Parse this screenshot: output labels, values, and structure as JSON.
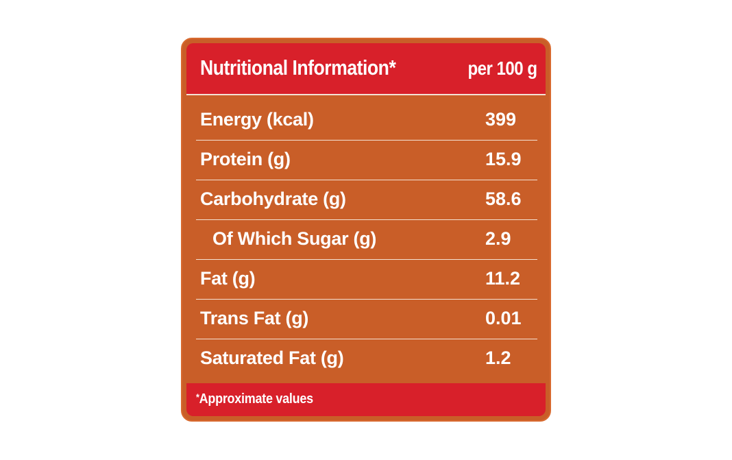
{
  "header": {
    "title": "Nutritional Information*",
    "unit": "per 100 g"
  },
  "rows": [
    {
      "label": "Energy (kcal)",
      "value": "399"
    },
    {
      "label": "Protein (g)",
      "value": "15.9"
    },
    {
      "label": "Carbohydrate (g)",
      "value": "58.6"
    },
    {
      "label": "Of Which Sugar (g)",
      "value": "2.9"
    },
    {
      "label": "Fat (g)",
      "value": "11.2"
    },
    {
      "label": "Trans Fat (g)",
      "value": "0.01"
    },
    {
      "label": "Saturated Fat (g)",
      "value": "1.2"
    }
  ],
  "footer": {
    "star": "*",
    "note": "Approximate values"
  },
  "colors": {
    "header_red": "#d8202a",
    "body_orange": "#c95e28",
    "divider": "#f4e2d4",
    "text": "#ffffff"
  }
}
